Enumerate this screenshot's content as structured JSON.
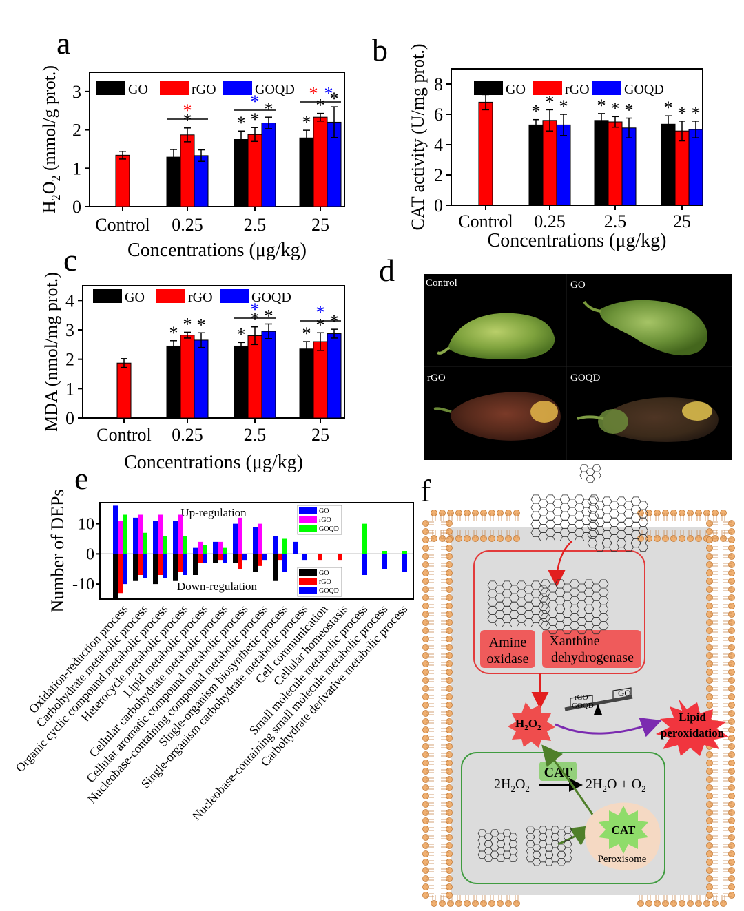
{
  "panels": {
    "a": "a",
    "b": "b",
    "c": "c",
    "d": "d",
    "e": "e",
    "f": "f"
  },
  "colors": {
    "GO": "#000000",
    "rGO": "#ff0000",
    "GOQD": "#0000ff",
    "rGO_e": "#ff00ff",
    "GOQD_e": "#00ff00",
    "star_red": "#ff0000",
    "star_blue": "#0000ff"
  },
  "chart_data": [
    {
      "id": "a",
      "type": "bar",
      "xlabel": "Concentrations (μg/kg)",
      "ylabel_parts": [
        "H",
        "2",
        "O",
        "2",
        " (mmol/g prot.)"
      ],
      "ylim": [
        0,
        3.5
      ],
      "yticks": [
        0,
        1,
        2,
        3
      ],
      "categories": [
        "Control",
        "0.25",
        "2.5",
        "25"
      ],
      "legend": [
        "GO",
        "rGO",
        "GOQD"
      ],
      "series": [
        {
          "name": "GO",
          "values": [
            null,
            1.29,
            1.75,
            1.79
          ],
          "errors": [
            null,
            0.2,
            0.22,
            0.2
          ],
          "stars": [
            false,
            false,
            true,
            true
          ]
        },
        {
          "name": "rGO",
          "values": [
            1.34,
            1.87,
            1.88,
            2.33
          ],
          "errors": [
            0.1,
            0.18,
            0.18,
            0.1
          ],
          "stars": [
            false,
            true,
            true,
            true
          ]
        },
        {
          "name": "GOQD",
          "values": [
            null,
            1.33,
            2.18,
            2.2
          ],
          "errors": [
            null,
            0.15,
            0.15,
            0.4
          ],
          "stars": [
            false,
            false,
            true,
            true
          ]
        }
      ],
      "brackets": [
        {
          "category": 1,
          "color": "red",
          "label": "*"
        },
        {
          "category": 2,
          "color": "blue",
          "label": "*"
        },
        {
          "category": 3,
          "colors": [
            "red",
            "blue"
          ],
          "label": "*"
        }
      ]
    },
    {
      "id": "b",
      "type": "bar",
      "xlabel": "Concentrations (μg/kg)",
      "ylabel": "CAT activity (U/mg prot.)",
      "ylim": [
        0,
        9
      ],
      "yticks": [
        0,
        2,
        4,
        6,
        8
      ],
      "categories": [
        "Control",
        "0.25",
        "2.5",
        "25"
      ],
      "legend": [
        "GO",
        "rGO",
        "GOQD"
      ],
      "series": [
        {
          "name": "GO",
          "values": [
            null,
            5.3,
            5.6,
            5.35
          ],
          "errors": [
            null,
            0.35,
            0.45,
            0.55
          ],
          "stars": [
            false,
            true,
            true,
            true
          ]
        },
        {
          "name": "rGO",
          "values": [
            6.8,
            5.6,
            5.5,
            4.9
          ],
          "errors": [
            0.5,
            0.7,
            0.35,
            0.65
          ],
          "stars": [
            false,
            true,
            true,
            true
          ]
        },
        {
          "name": "GOQD",
          "values": [
            null,
            5.3,
            5.1,
            5.0
          ],
          "errors": [
            null,
            0.7,
            0.65,
            0.55
          ],
          "stars": [
            false,
            true,
            true,
            true
          ]
        }
      ],
      "brackets": []
    },
    {
      "id": "c",
      "type": "bar",
      "xlabel": "Concentrations (μg/kg)",
      "ylabel": "MDA (nmol/mg prot.)",
      "ylim": [
        0,
        4.5
      ],
      "yticks": [
        0,
        1,
        2,
        3,
        4
      ],
      "categories": [
        "Control",
        "0.25",
        "2.5",
        "25"
      ],
      "legend": [
        "GO",
        "rGO",
        "GOQD"
      ],
      "series": [
        {
          "name": "GO",
          "values": [
            null,
            2.45,
            2.45,
            2.35
          ],
          "errors": [
            null,
            0.18,
            0.12,
            0.25
          ],
          "stars": [
            false,
            true,
            true,
            true
          ]
        },
        {
          "name": "rGO",
          "values": [
            1.87,
            2.82,
            2.8,
            2.6
          ],
          "errors": [
            0.15,
            0.1,
            0.3,
            0.3
          ],
          "stars": [
            false,
            true,
            true,
            true
          ]
        },
        {
          "name": "GOQD",
          "values": [
            null,
            2.65,
            2.95,
            2.87
          ],
          "errors": [
            null,
            0.25,
            0.25,
            0.15
          ],
          "stars": [
            false,
            true,
            true,
            true
          ]
        }
      ],
      "brackets": [
        {
          "category": 2,
          "color": "blue",
          "label": "*"
        },
        {
          "category": 3,
          "color": "blue",
          "label": "*"
        }
      ]
    },
    {
      "id": "e",
      "type": "bar",
      "ylabel": "Number of DEPs",
      "ylim": [
        -15,
        17
      ],
      "yticks": [
        -10,
        0,
        10
      ],
      "up_label": "Up-regulation",
      "down_label": "Down-regulation",
      "legend": [
        "GO",
        "rGO",
        "GOQD"
      ],
      "categories": [
        "Oxidation-reduction process",
        "Carbohydrate metabolic process",
        "Organic cyclic compound metabolic process",
        "Heterocycle metabolic process",
        "Lipid metabolic process",
        "Cellular carbohydrate metabolic process",
        "Cellular aromatic compound metabolic process",
        "Nucleobase-containing compound metabolic process",
        "Single-organism biosynthetic process",
        "Single-organism carbohydrate metabolic process",
        "Cell communication",
        "Cellular homeostasis",
        "Small molecule metabolic process",
        "Nucleobase-containing small molecule metabolic process",
        "Carbohydrate derivative metabolic process"
      ],
      "up": [
        {
          "name": "GO",
          "values": [
            16,
            12,
            11,
            11,
            2,
            4,
            10,
            9,
            6,
            4,
            0,
            0,
            0,
            0,
            0
          ]
        },
        {
          "name": "rGO",
          "values": [
            11,
            13,
            13,
            13,
            4,
            4,
            12,
            10,
            0,
            0,
            0,
            0,
            0,
            0,
            0
          ]
        },
        {
          "name": "GOQD",
          "values": [
            13,
            7,
            6,
            6,
            3,
            2,
            0,
            0,
            5,
            0,
            0,
            0,
            10,
            1,
            1
          ]
        }
      ],
      "down": [
        {
          "name": "GO",
          "values": [
            -15,
            -9,
            -10,
            -9,
            -7,
            -3,
            -3,
            -6,
            -9,
            0,
            0,
            0,
            0,
            0,
            0
          ]
        },
        {
          "name": "rGO",
          "values": [
            -13,
            -7,
            -7,
            -6,
            -3,
            -2,
            -5,
            -4,
            -2,
            0,
            -2,
            -2,
            0,
            0,
            0
          ]
        },
        {
          "name": "GOQD",
          "values": [
            -10,
            -8,
            -8,
            -7,
            -3,
            -3,
            -2,
            -2,
            -6,
            -2,
            0,
            0,
            -7,
            -5,
            -6
          ]
        }
      ]
    }
  ],
  "photos": {
    "control": "Control",
    "go": "GO",
    "rgo": "rGO",
    "goqd": "GOQD"
  },
  "diagram": {
    "amine_1": "Amine",
    "amine_2": "oxidase",
    "xanthine_1": "Xanthine",
    "xanthine_2": "dehydrogenase",
    "h2o2": [
      "H",
      "2",
      "O",
      "2"
    ],
    "lipid_1": "Lipid",
    "lipid_2": "peroxidation",
    "cat_box": "CAT",
    "cat_star": "CAT",
    "reaction_left": [
      "2H",
      "2",
      "O",
      "2"
    ],
    "reaction_right": [
      "2H",
      "2",
      "O + O",
      "2"
    ],
    "peroxisome": "Peroxisome",
    "balance_rgo": "rGO",
    "balance_goqd": "GOQD",
    "balance_go": "GO"
  }
}
